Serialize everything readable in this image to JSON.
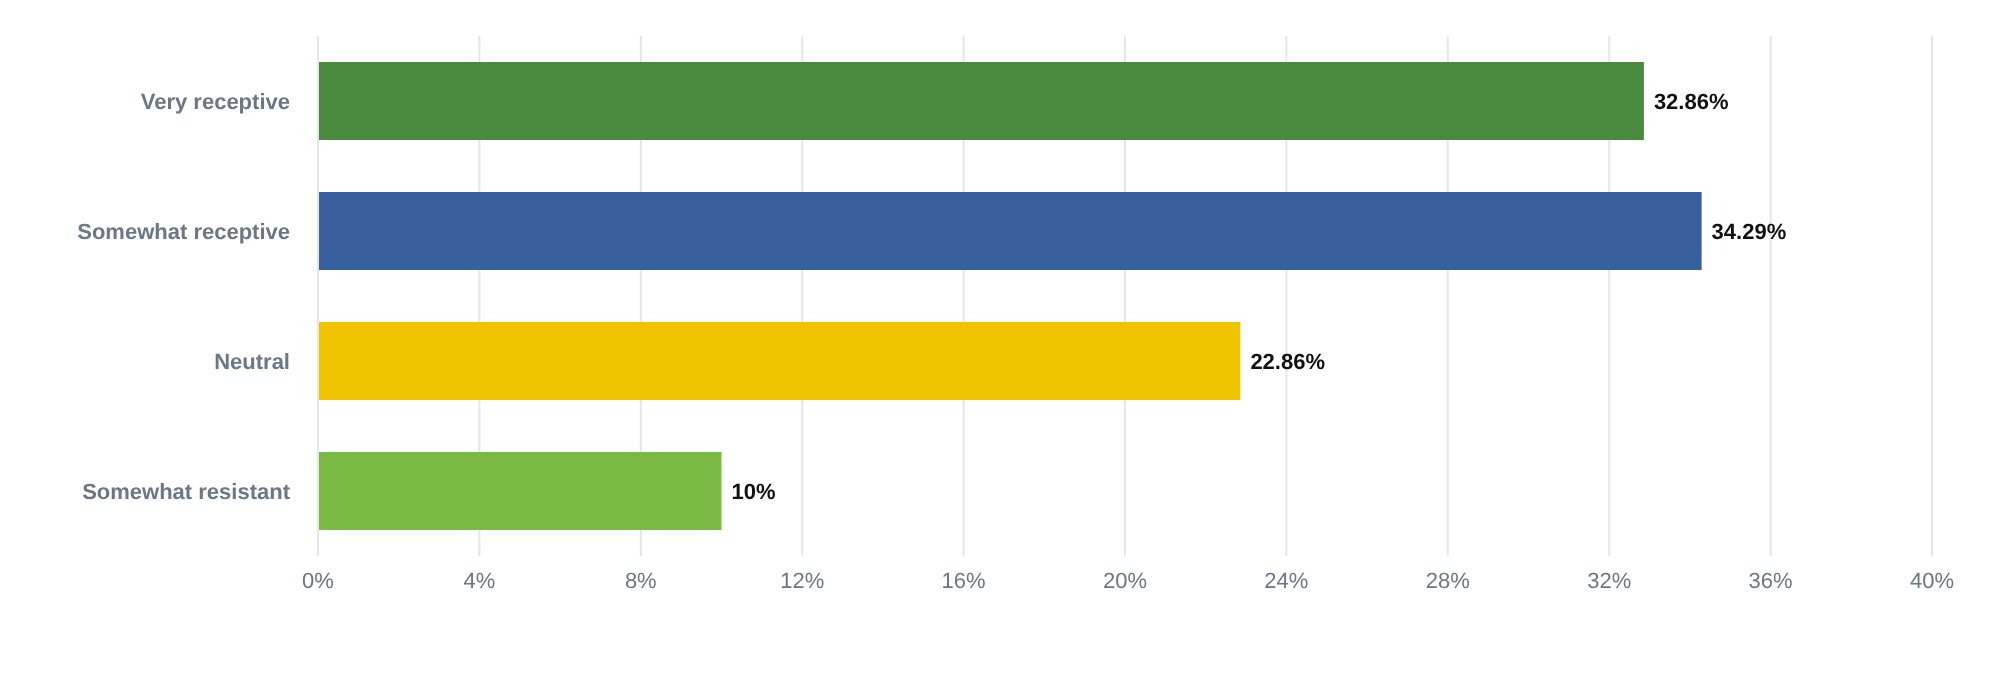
{
  "chart_data": {
    "type": "bar",
    "orientation": "horizontal",
    "categories": [
      "Very receptive",
      "Somewhat receptive",
      "Neutral",
      "Somewhat resistant"
    ],
    "values": [
      32.86,
      34.29,
      22.86,
      10
    ],
    "colors": [
      "#4a8a3f",
      "#3a5f9f",
      "#f0c400",
      "#7aba44"
    ],
    "value_labels": [
      "32.86%",
      "34.29%",
      "22.86%",
      "10%"
    ],
    "xlim": [
      0,
      40
    ],
    "xticks": [
      {
        "value": 0,
        "label": "0%"
      },
      {
        "value": 4,
        "label": "4%"
      },
      {
        "value": 8,
        "label": "8%"
      },
      {
        "value": 12,
        "label": "12%"
      },
      {
        "value": 16,
        "label": "16%"
      },
      {
        "value": 20,
        "label": "20%"
      },
      {
        "value": 24,
        "label": "24%"
      },
      {
        "value": 28,
        "label": "28%"
      },
      {
        "value": 32,
        "label": "32%"
      },
      {
        "value": 36,
        "label": "36%"
      },
      {
        "value": 40,
        "label": "40%"
      }
    ],
    "grid": "x"
  }
}
